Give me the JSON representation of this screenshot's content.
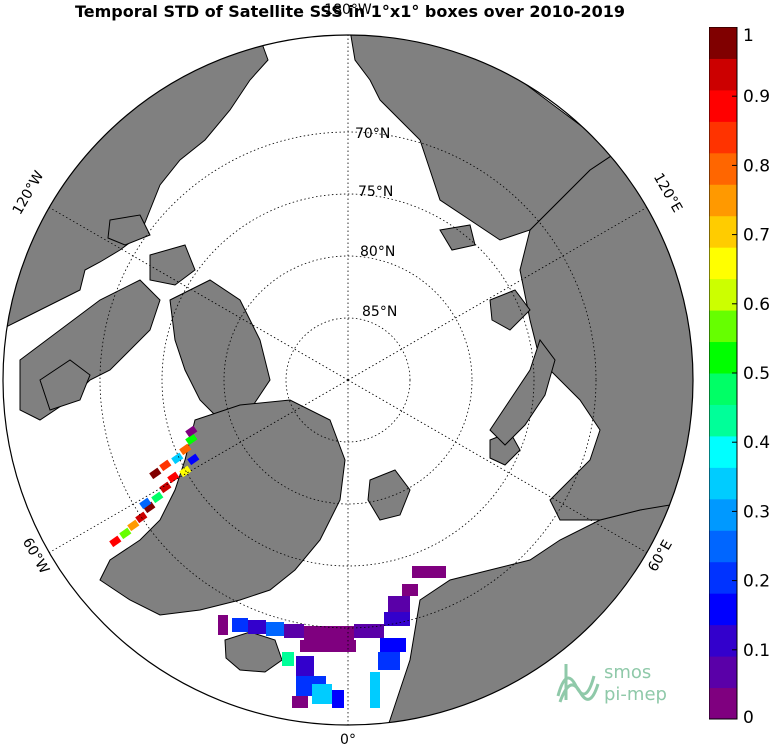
{
  "title": "Temporal STD of Satellite SSS in 1°x1° boxes over 2010-2019",
  "map": {
    "lat_labels": [
      "70°N",
      "75°N",
      "80°N",
      "85°N"
    ],
    "lon_labels": {
      "top": "180°W",
      "bottom": "0°",
      "left_upper": "120°W",
      "left_lower": "60°W",
      "right_upper": "120°E",
      "right_lower": "60°E"
    },
    "land_color": "#808080",
    "ocean_color": "#ffffff"
  },
  "colorbar": {
    "min": 0,
    "max": 1,
    "ticks": [
      "0",
      "0.1",
      "0.2",
      "0.3",
      "0.4",
      "0.5",
      "0.6",
      "0.7",
      "0.8",
      "0.9",
      "1"
    ],
    "colors": [
      "#7f007f",
      "#5a00a8",
      "#3300cc",
      "#0000ff",
      "#0033ff",
      "#0066ff",
      "#0099ff",
      "#00ccff",
      "#00ffff",
      "#00ff99",
      "#00ff66",
      "#00ff00",
      "#66ff00",
      "#ccff00",
      "#ffff00",
      "#ffcc00",
      "#ff9900",
      "#ff6600",
      "#ff3300",
      "#ff0000",
      "#cc0000",
      "#800000"
    ]
  },
  "logo": {
    "line1": "smos",
    "line2": "pi-mep"
  }
}
